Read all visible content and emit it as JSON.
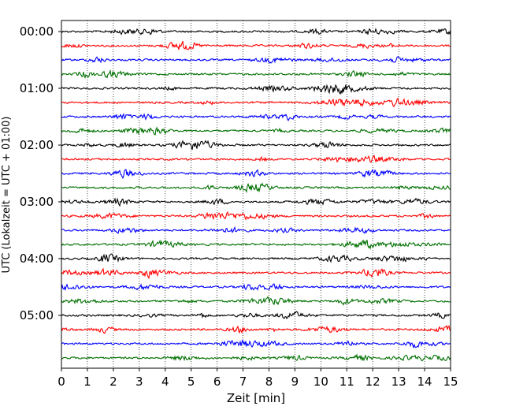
{
  "chart_data": {
    "type": "line",
    "title": "",
    "xlabel": "Zeit  [min]",
    "ylabel": "UTC (Lokalzeit = UTC + 01:00)",
    "xlim": [
      0,
      15
    ],
    "x_ticks": [
      "0",
      "1",
      "2",
      "3",
      "4",
      "5",
      "6",
      "7",
      "8",
      "9",
      "10",
      "11",
      "12",
      "13",
      "14",
      "15"
    ],
    "y_ticks": [
      "00:00",
      "01:00",
      "02:00",
      "03:00",
      "04:00",
      "05:00"
    ],
    "grid": "vertical dotted",
    "legend": "none",
    "trace_colors": [
      "#000000",
      "#ff0000",
      "#0000ff",
      "#007000"
    ],
    "traces_per_hour": 4,
    "trace_count": 24,
    "trace_minutes": 15,
    "first_trace_start": "00:00",
    "last_trace_start": "05:45",
    "notes_visible": []
  }
}
